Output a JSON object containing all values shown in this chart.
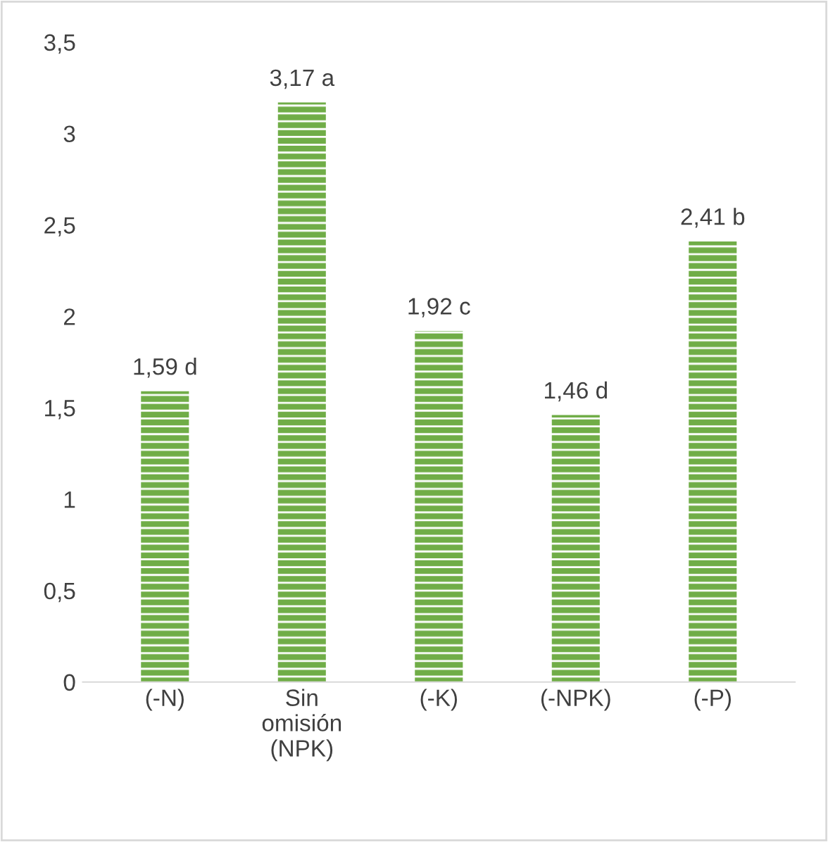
{
  "chart_data": {
    "type": "bar",
    "categories": [
      "(-N)",
      "Sin\nomisión\n(NPK)",
      "(-K)",
      "(-NPK)",
      "(-P)"
    ],
    "values": [
      1.59,
      3.17,
      1.92,
      1.46,
      2.41
    ],
    "value_labels": [
      "1,59 d",
      "3,17 a",
      "1,92 c",
      "1,46 d",
      "2,41 b"
    ],
    "color": "#70ad47",
    "ylim": [
      0,
      3.5
    ],
    "yticks": [
      0,
      {
        "value": 0.5,
        "label": "0,5"
      },
      1,
      {
        "value": 1.5,
        "label": "1,5"
      },
      2,
      {
        "value": 2.5,
        "label": "2,5"
      },
      3,
      {
        "value": 3.5,
        "label": "3,5"
      }
    ],
    "grid": false
  }
}
